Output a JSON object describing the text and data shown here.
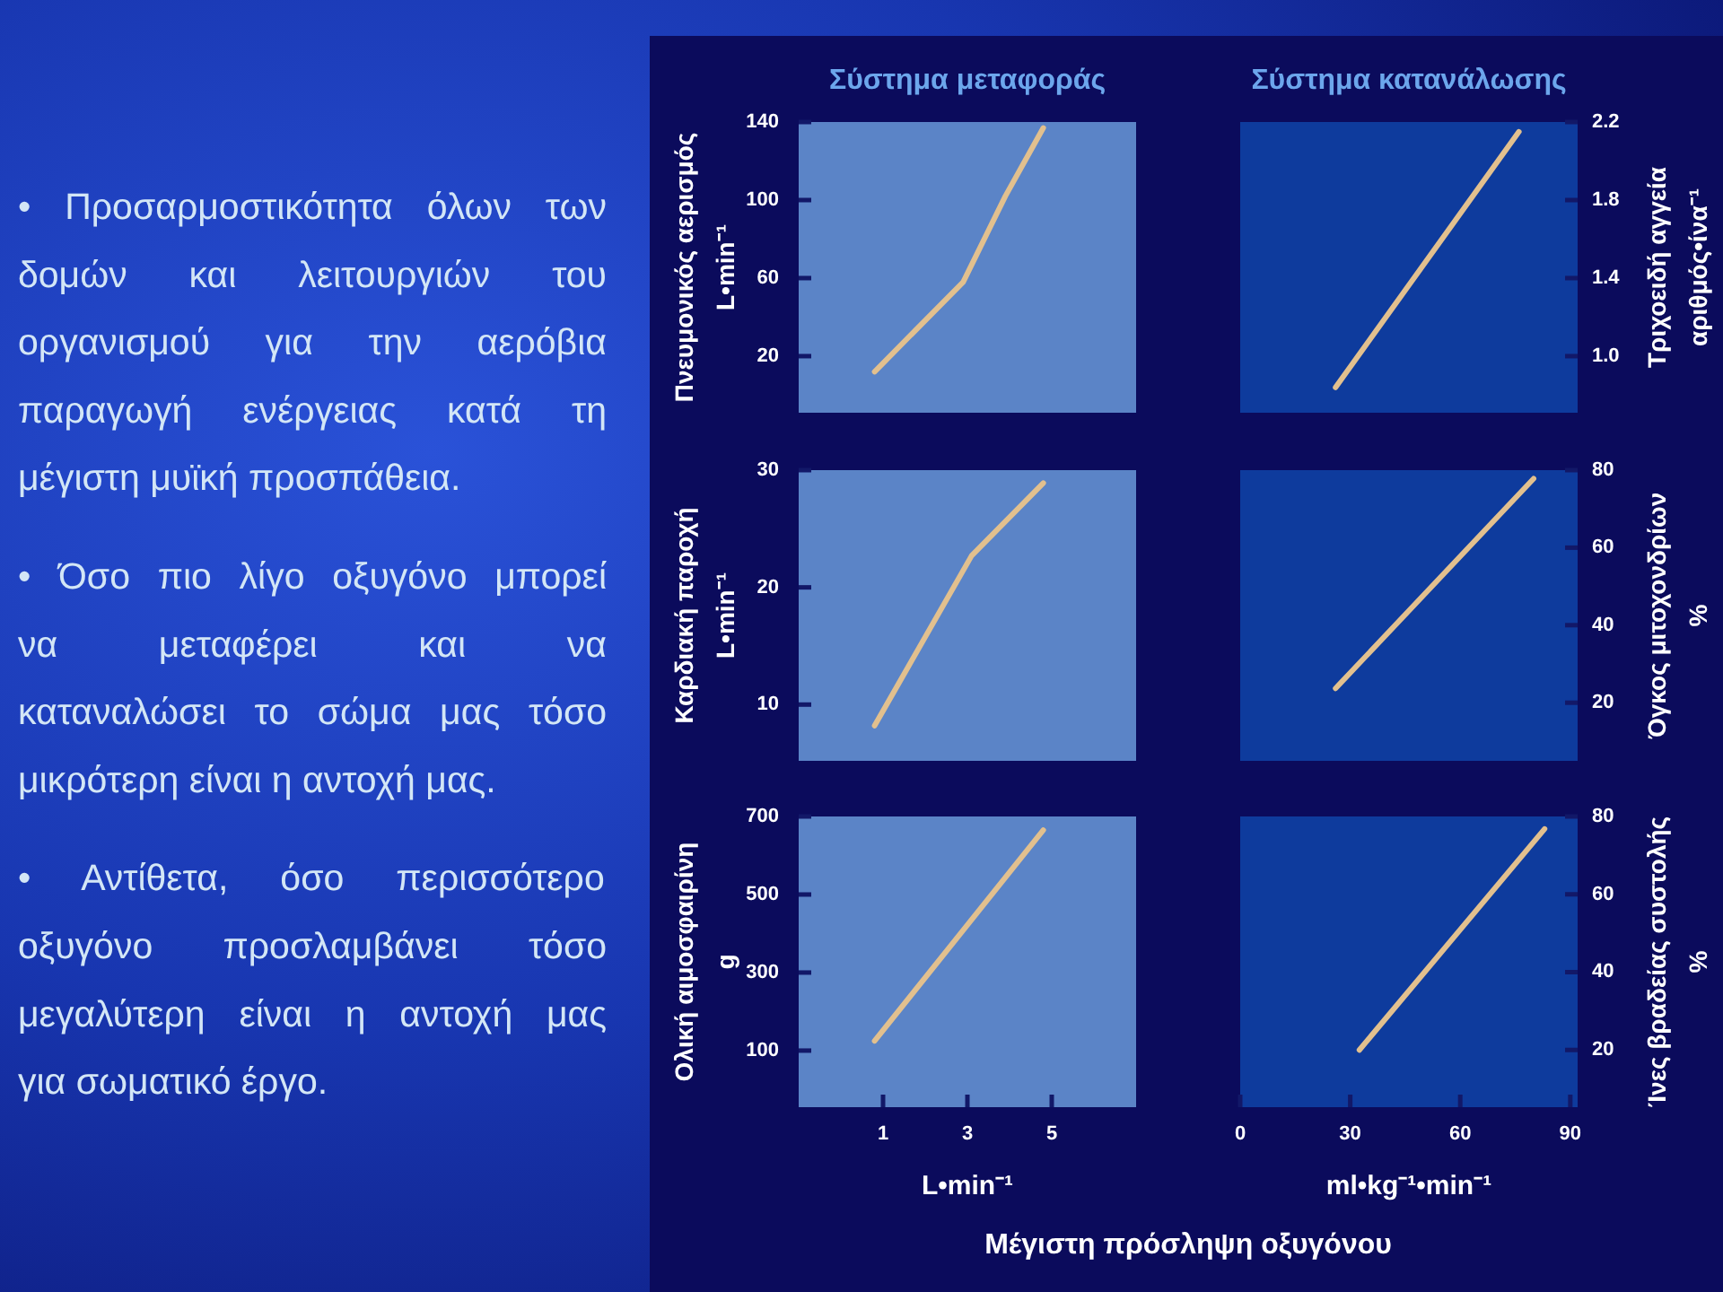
{
  "chart_data": [
    {
      "type": "other",
      "annotations": [
        "• Προσαρμοστικότητα όλων των δομών και λειτουργιών του οργανισμού για την αερόβια παραγωγή ενέργειας κατά τη μέγιστη μυϊκή προσπάθεια.",
        "• Όσο πιο λίγο οξυγόνο μπορεί να μεταφέρει και να καταναλώσει το σώμα μας τόσο μικρότερη είναι η αντοχή μας.",
        "• Αντίθετα, όσο περισσότερο οξυγόνο προσλαμβάνει τόσο μεγαλύτερη είναι η αντοχή μας για σωματικό έργο."
      ]
    },
    {
      "type": "line",
      "title": "Σύστημα μεταφοράς",
      "ylabel": "Πνευμονικός αερισμός\nL•min⁻¹",
      "x": [
        0.8,
        2.9,
        3.9,
        4.8
      ],
      "values": [
        12,
        58,
        102,
        137
      ],
      "color": "#e2c08e",
      "xlim": [
        -1,
        7
      ],
      "ylim": [
        -9,
        140
      ],
      "yticks": [
        20,
        60,
        100,
        140
      ],
      "tick_labels": "y"
    },
    {
      "type": "line",
      "title": "Σύστημα κατανάλωσης",
      "y2label": "Τριχοειδή αγγεία\nαριθμός•ίνα⁻¹",
      "x": [
        26,
        76
      ],
      "series": [
        {
          "color": "#e2c08e",
          "axis": "y2",
          "values": [
            0.84,
            2.15
          ]
        }
      ],
      "xlim": [
        0,
        92
      ],
      "y2lim": [
        0.71,
        2.2
      ],
      "y2ticks": [
        {
          "value": 1,
          "label": "1.0"
        },
        1.4,
        1.8,
        2.2
      ],
      "tick_labels": "y"
    },
    {
      "type": "line",
      "ylabel": "Καρδιακή παροχή\nL•min⁻¹",
      "x": [
        0.8,
        3.1,
        4.8
      ],
      "values": [
        8.2,
        22.7,
        28.9
      ],
      "color": "#e2c08e",
      "xlim": [
        -1,
        7
      ],
      "ylim": [
        5.2,
        30
      ],
      "yticks": [
        10,
        20,
        30
      ],
      "tick_labels": "y"
    },
    {
      "type": "line",
      "y2label": "Όγκος μιτοχονδρίων\n%",
      "x": [
        26,
        80
      ],
      "series": [
        {
          "color": "#e2c08e",
          "axis": "y2",
          "values": [
            23.7,
            77.8
          ]
        }
      ],
      "xlim": [
        0,
        92
      ],
      "y2lim": [
        5,
        80
      ],
      "y2ticks": [
        20,
        40,
        60,
        80
      ],
      "tick_labels": "y"
    },
    {
      "type": "line",
      "ylabel": "Ολική αιμοσφαιρίνη\ng",
      "xlabel": "L•min⁻¹",
      "x": [
        0.8,
        4.8
      ],
      "values": [
        125,
        665
      ],
      "color": "#e2c08e",
      "xlim": [
        -1,
        7
      ],
      "xticks": [
        1,
        3,
        5
      ],
      "ylim": [
        -45,
        700
      ],
      "yticks": [
        100,
        300,
        500,
        700
      ],
      "annotations": [
        "Μέγιστη πρόσληψη οξυγόνου"
      ]
    },
    {
      "type": "line",
      "y2label": "Ίνες βραδείας συστολής\n%",
      "xlabel": "ml•kg⁻¹•min⁻¹",
      "x": [
        32.5,
        83
      ],
      "series": [
        {
          "color": "#e2c08e",
          "axis": "y2",
          "values": [
            20,
            76.8
          ]
        }
      ],
      "xlim": [
        0,
        92
      ],
      "xticks": [
        0,
        30,
        60,
        90
      ],
      "y2lim": [
        5.3,
        80
      ],
      "y2ticks": [
        20,
        40,
        60,
        80
      ]
    }
  ]
}
